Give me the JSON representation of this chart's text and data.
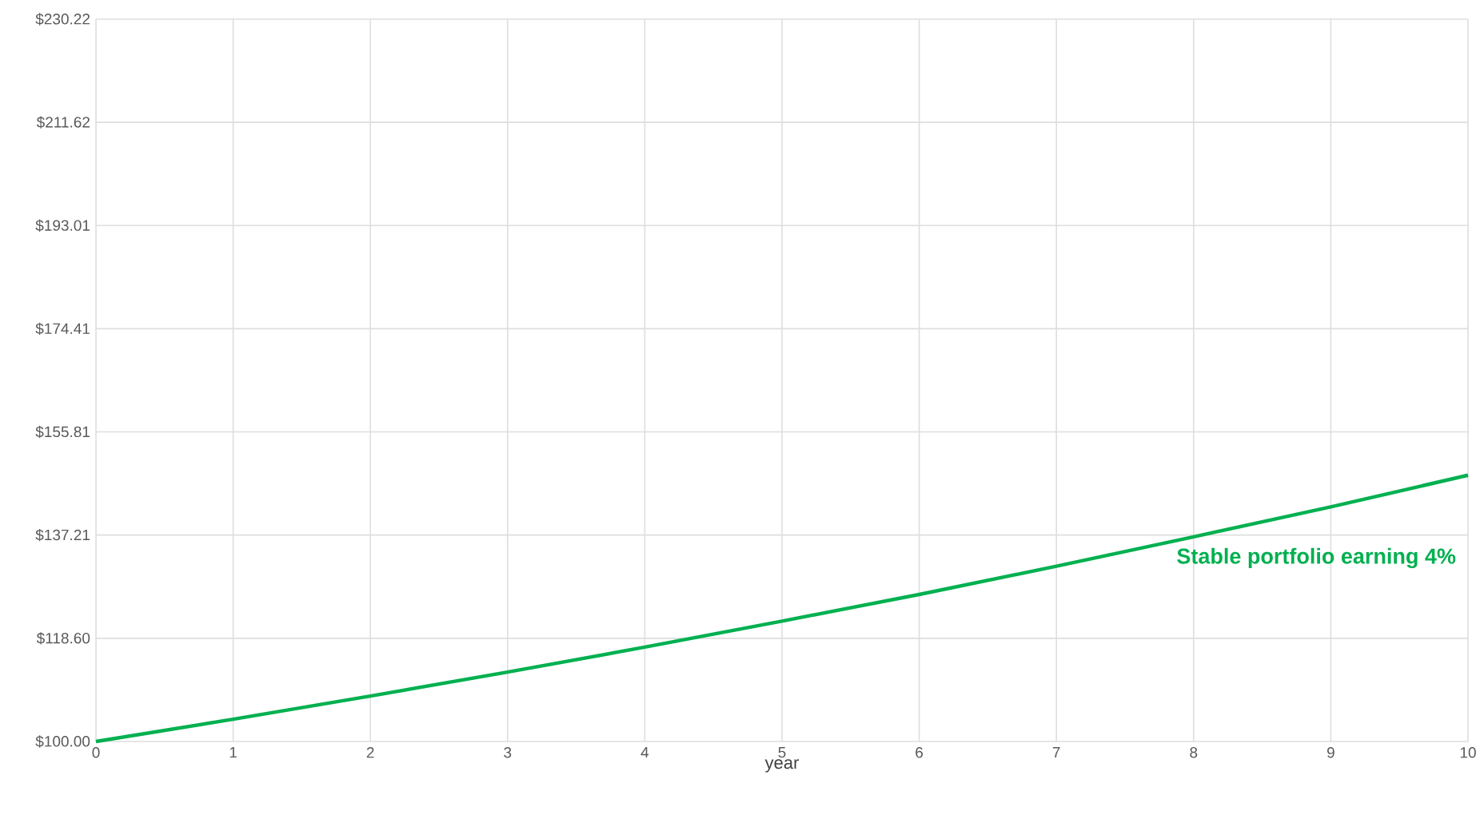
{
  "chart_data": {
    "type": "line",
    "xlabel": "year",
    "x": [
      0,
      1,
      2,
      3,
      4,
      5,
      6,
      7,
      8,
      9,
      10
    ],
    "series": [
      {
        "name": "Stable portfolio earning 4%",
        "color": "#00b050",
        "values": [
          100,
          104,
          108.2,
          112.5,
          117,
          121.7,
          126.5,
          131.6,
          136.9,
          142.3,
          148
        ]
      }
    ],
    "xlim": [
      0,
      10
    ],
    "xticks": [
      0,
      1,
      2,
      3,
      4,
      5,
      6,
      7,
      8,
      9,
      10
    ],
    "ylim": [
      100,
      230.22
    ],
    "yticks": [
      {
        "value": 100,
        "label": "$100.00"
      },
      {
        "value": 118.6,
        "label": "$118.60"
      },
      {
        "value": 137.21,
        "label": "$137.21"
      },
      {
        "value": 155.81,
        "label": "$155.81"
      },
      {
        "value": 174.41,
        "label": "$174.41"
      },
      {
        "value": 193.01,
        "label": "$193.01"
      },
      {
        "value": 211.62,
        "label": "$211.62"
      },
      {
        "value": 230.22,
        "label": "$230.22"
      }
    ],
    "grid": true,
    "legend": false,
    "marker": "none",
    "line_style": "solid"
  }
}
